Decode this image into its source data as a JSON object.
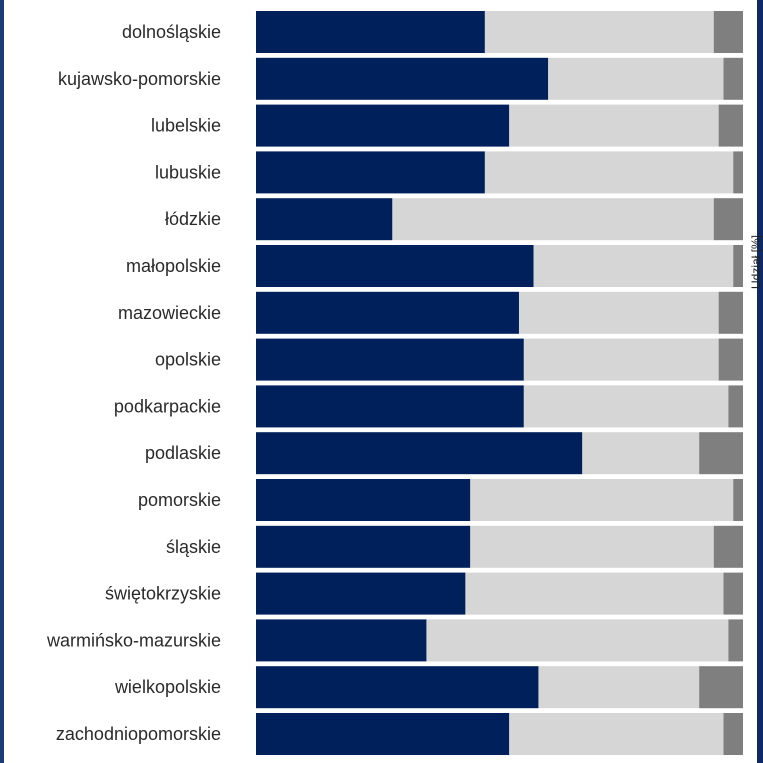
{
  "chart_data": {
    "type": "bar",
    "stacked": true,
    "orientation": "horizontal",
    "categories": [
      "dolnośląskie",
      "kujawsko-pomorskie",
      "lubelskie",
      "lubuskie",
      "łódzkie",
      "małopolskie",
      "mazowieckie",
      "opolskie",
      "podkarpackie",
      "podlaskie",
      "pomorskie",
      "śląskie",
      "świętokrzyskie",
      "warmińsko-mazurskie",
      "wielkopolskie",
      "zachodniopomorskie"
    ],
    "series": [
      {
        "color": "#00205b",
        "values": [
          47,
          60,
          52,
          47,
          28,
          57,
          54,
          55,
          55,
          67,
          44,
          44,
          43,
          35,
          58,
          52
        ]
      },
      {
        "color": "#d6d6d6",
        "values": [
          47,
          36,
          43,
          51,
          66,
          41,
          41,
          40,
          42,
          24,
          54,
          50,
          53,
          62,
          33,
          44
        ]
      },
      {
        "color": "#7f7f7f",
        "values": [
          6,
          4,
          5,
          2,
          6,
          2,
          5,
          5,
          3,
          9,
          2,
          6,
          4,
          3,
          9,
          4
        ]
      }
    ],
    "xlim": [
      0,
      100
    ],
    "ylabel": "Udział [%]",
    "grid": false,
    "legend": "none"
  }
}
